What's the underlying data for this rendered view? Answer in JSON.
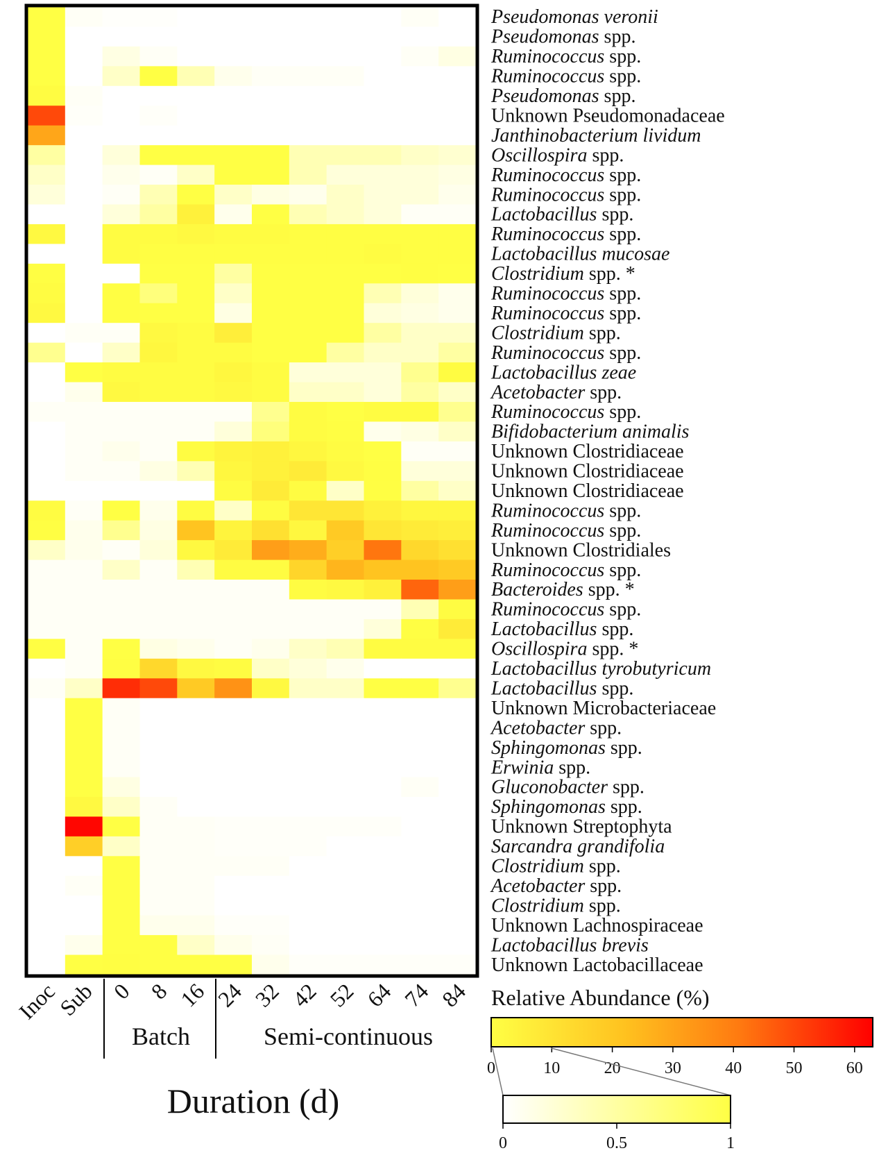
{
  "chart_data": {
    "type": "heatmap",
    "xlabel": "Duration (d)",
    "columns": [
      "Inoc",
      "Sub",
      "0",
      "8",
      "16",
      "24",
      "32",
      "42",
      "52",
      "64",
      "74",
      "84"
    ],
    "groups": [
      {
        "label": "Batch",
        "columns": [
          "0",
          "8",
          "16"
        ]
      },
      {
        "label": "Semi-continuous",
        "columns": [
          "24",
          "32",
          "42",
          "52",
          "64",
          "74",
          "84"
        ]
      }
    ],
    "rows": [
      {
        "genus": "Pseudomonas veronii",
        "rest": "",
        "italic": true
      },
      {
        "genus": "Pseudomonas",
        "rest": " spp.",
        "italic": true
      },
      {
        "genus": "Ruminococcus",
        "rest": " spp.",
        "italic": true
      },
      {
        "genus": "Ruminococcus",
        "rest": " spp.",
        "italic": true
      },
      {
        "genus": "Pseudomonas",
        "rest": " spp.",
        "italic": true
      },
      {
        "genus": "Unknown Pseudomonadaceae",
        "rest": "",
        "italic": false
      },
      {
        "genus": "Janthinobacterium lividum",
        "rest": "",
        "italic": true
      },
      {
        "genus": "Oscillospira",
        "rest": " spp.",
        "italic": true
      },
      {
        "genus": "Ruminococcus",
        "rest": " spp.",
        "italic": true
      },
      {
        "genus": "Ruminococcus",
        "rest": " spp.",
        "italic": true
      },
      {
        "genus": "Lactobacillus",
        "rest": " spp.",
        "italic": true
      },
      {
        "genus": "Ruminococcus",
        "rest": " spp.",
        "italic": true
      },
      {
        "genus": "Lactobacillus mucosae",
        "rest": "",
        "italic": true
      },
      {
        "genus": "Clostridium",
        "rest": " spp. *",
        "italic": true
      },
      {
        "genus": "Ruminococcus",
        "rest": " spp.",
        "italic": true
      },
      {
        "genus": "Ruminococcus",
        "rest": " spp.",
        "italic": true
      },
      {
        "genus": "Clostridium",
        "rest": " spp.",
        "italic": true
      },
      {
        "genus": "Ruminococcus",
        "rest": " spp.",
        "italic": true
      },
      {
        "genus": "Lactobacillus zeae",
        "rest": "",
        "italic": true
      },
      {
        "genus": "Acetobacter",
        "rest": " spp.",
        "italic": true
      },
      {
        "genus": "Ruminococcus",
        "rest": " spp.",
        "italic": true
      },
      {
        "genus": "Bifidobacterium animalis",
        "rest": "",
        "italic": true
      },
      {
        "genus": "Unknown Clostridiaceae",
        "rest": "",
        "italic": false
      },
      {
        "genus": "Unknown Clostridiaceae",
        "rest": "",
        "italic": false
      },
      {
        "genus": "Unknown Clostridiaceae",
        "rest": "",
        "italic": false
      },
      {
        "genus": "Ruminococcus",
        "rest": " spp.",
        "italic": true
      },
      {
        "genus": "Ruminococcus",
        "rest": " spp.",
        "italic": true
      },
      {
        "genus": "Unknown Clostridiales",
        "rest": "",
        "italic": false
      },
      {
        "genus": "Ruminococcus",
        "rest": " spp.",
        "italic": true
      },
      {
        "genus": "Bacteroides",
        "rest": " spp. *",
        "italic": true
      },
      {
        "genus": "Ruminococcus",
        "rest": " spp.",
        "italic": true
      },
      {
        "genus": "Lactobacillus",
        "rest": " spp.",
        "italic": true
      },
      {
        "genus": "Oscillospira",
        "rest": " spp. *",
        "italic": true
      },
      {
        "genus": "Lactobacillus tyrobutyricum",
        "rest": "",
        "italic": true
      },
      {
        "genus": "Lactobacillus",
        "rest": " spp.",
        "italic": true
      },
      {
        "genus": "Unknown Microbacteriaceae",
        "rest": "",
        "italic": false
      },
      {
        "genus": "Acetobacter",
        "rest": " spp.",
        "italic": true
      },
      {
        "genus": "Sphingomonas",
        "rest": " spp.",
        "italic": true
      },
      {
        "genus": "Erwinia",
        "rest": " spp.",
        "italic": true
      },
      {
        "genus": "Gluconobacter",
        "rest": " spp.",
        "italic": true
      },
      {
        "genus": "Sphingomonas",
        "rest": " spp.",
        "italic": true
      },
      {
        "genus": "Unknown Streptophyta",
        "rest": "",
        "italic": false
      },
      {
        "genus": "Sarcandra grandifolia",
        "rest": "",
        "italic": true
      },
      {
        "genus": "Clostridium",
        "rest": " spp.",
        "italic": true
      },
      {
        "genus": "Acetobacter",
        "rest": " spp.",
        "italic": true
      },
      {
        "genus": "Clostridium",
        "rest": " spp.",
        "italic": true
      },
      {
        "genus": "Unknown Lachnospiraceae",
        "rest": "",
        "italic": false
      },
      {
        "genus": "Lactobacillus brevis",
        "rest": "",
        "italic": true
      },
      {
        "genus": "Unknown Lactobacillaceae",
        "rest": "",
        "italic": false
      }
    ],
    "values": [
      [
        1.0,
        0.05,
        0.02,
        0.02,
        0,
        0,
        0,
        0,
        0,
        0,
        0.05,
        0
      ],
      [
        1.0,
        0,
        0,
        0,
        0,
        0,
        0,
        0,
        0,
        0,
        0,
        0
      ],
      [
        1.0,
        0,
        0.15,
        0.05,
        0,
        0,
        0,
        0,
        0,
        0,
        0.05,
        0.15
      ],
      [
        1.0,
        0,
        0.3,
        1.0,
        0.4,
        0.1,
        0.05,
        0.05,
        0.05,
        0,
        0,
        0
      ],
      [
        2,
        0.05,
        0,
        0,
        0,
        0,
        0,
        0,
        0,
        0,
        0,
        0
      ],
      [
        50,
        0.03,
        0,
        0.03,
        0,
        0,
        0,
        0,
        0,
        0,
        0,
        0
      ],
      [
        30,
        0,
        0,
        0,
        0,
        0,
        0,
        0,
        0,
        0,
        0,
        0
      ],
      [
        0.5,
        0,
        0.2,
        1.0,
        1.0,
        1.0,
        1.0,
        0.4,
        0.4,
        0.4,
        0.3,
        0.25
      ],
      [
        0.3,
        0,
        0.1,
        0.05,
        0.3,
        1.0,
        1.0,
        0.4,
        0.2,
        0.2,
        0.2,
        0.15
      ],
      [
        0.2,
        0,
        0.05,
        0.4,
        1.0,
        0.3,
        0.15,
        0.1,
        0.3,
        0.2,
        0.2,
        0.1
      ],
      [
        0,
        0,
        0.2,
        0.5,
        6,
        0.1,
        1.0,
        0.4,
        0.3,
        0.2,
        0.05,
        0.05
      ],
      [
        3,
        0,
        2,
        2,
        3,
        2,
        2,
        1.5,
        1.5,
        1.5,
        1.5,
        1.5
      ],
      [
        0,
        0,
        2,
        1.5,
        1.5,
        1.5,
        1.5,
        1.5,
        1.5,
        2,
        1.5,
        1.5
      ],
      [
        1.5,
        0,
        0,
        1.0,
        1.0,
        0.5,
        1.0,
        1.0,
        1.0,
        1.0,
        1.5,
        1.0
      ],
      [
        2,
        0,
        1.5,
        0.7,
        1.0,
        0.3,
        1.0,
        1.0,
        1.0,
        0.4,
        0.2,
        0.1
      ],
      [
        3,
        0,
        1.5,
        1.0,
        1.0,
        0.15,
        1.0,
        1.0,
        1.0,
        0.2,
        0.15,
        0.1
      ],
      [
        0,
        0.05,
        0.05,
        3,
        2,
        7,
        1.0,
        1.0,
        1.0,
        0.5,
        0.3,
        0.3
      ],
      [
        0.6,
        0,
        0.3,
        4,
        2,
        2,
        1.0,
        1.0,
        0.5,
        0.3,
        0.3,
        0.5
      ],
      [
        0,
        1.0,
        2,
        2,
        2,
        4,
        2,
        0.2,
        0.2,
        0.2,
        0.6,
        2
      ],
      [
        0,
        0.1,
        3,
        2,
        2,
        3,
        2,
        0.3,
        0.3,
        0.2,
        0.5,
        0.3
      ],
      [
        0.05,
        0.05,
        0.05,
        0.05,
        0.05,
        0.05,
        0.6,
        2,
        1.0,
        2,
        2,
        0.6
      ],
      [
        0,
        0.05,
        0.05,
        0.05,
        0.05,
        0.2,
        0.7,
        2,
        1.5,
        0.1,
        0.15,
        0.3
      ],
      [
        0,
        0.05,
        0.1,
        0.05,
        2,
        5,
        6,
        4,
        2,
        1.0,
        0.05,
        0.05
      ],
      [
        0,
        0.05,
        0.05,
        0.15,
        0.4,
        4,
        6,
        8,
        3,
        1.5,
        0.2,
        0.2
      ],
      [
        0,
        0,
        0,
        0,
        0,
        2,
        8,
        2,
        0.3,
        1.5,
        0.5,
        0.3
      ],
      [
        2,
        0.05,
        1.0,
        0.1,
        2,
        0.3,
        2,
        10,
        10,
        6,
        4,
        4
      ],
      [
        1.5,
        0.1,
        0.6,
        0.15,
        22,
        5,
        12,
        4,
        20,
        10,
        8,
        7
      ],
      [
        0.3,
        0.1,
        0.05,
        0.2,
        3,
        8,
        32,
        28,
        18,
        42,
        15,
        12
      ],
      [
        0.05,
        0.05,
        0.3,
        0.05,
        0.4,
        2,
        2,
        16,
        26,
        22,
        22,
        20
      ],
      [
        0.05,
        0.05,
        0.05,
        0.05,
        0.05,
        0.05,
        0.05,
        2,
        3,
        6,
        45,
        32
      ],
      [
        0.05,
        0.05,
        0.05,
        0.05,
        0.05,
        0.05,
        0.05,
        0.05,
        0.05,
        0.05,
        0.4,
        2
      ],
      [
        0.05,
        0.05,
        0.05,
        0.05,
        0.05,
        0.05,
        0.05,
        0.05,
        0.05,
        0.2,
        1.5,
        8
      ],
      [
        1.5,
        0.05,
        1.0,
        0.15,
        0.1,
        0.05,
        0.1,
        0.3,
        0.4,
        2,
        2,
        2
      ],
      [
        0,
        0.05,
        1.5,
        15,
        3,
        2,
        0.3,
        0.2,
        0.1,
        0,
        0,
        0
      ],
      [
        0.05,
        0.3,
        55,
        50,
        20,
        35,
        3,
        0.3,
        0.3,
        1.0,
        1.0,
        0.6
      ],
      [
        0,
        1.0,
        0.05,
        0,
        0,
        0,
        0,
        0,
        0,
        0,
        0,
        0
      ],
      [
        0,
        1.0,
        0.05,
        0,
        0,
        0,
        0,
        0,
        0,
        0,
        0,
        0
      ],
      [
        0,
        1.0,
        0.05,
        0,
        0,
        0,
        0,
        0,
        0,
        0,
        0,
        0
      ],
      [
        0,
        1.0,
        0.05,
        0,
        0,
        0,
        0,
        0,
        0,
        0,
        0,
        0
      ],
      [
        0,
        1.0,
        0.15,
        0,
        0,
        0,
        0,
        0,
        0,
        0,
        0.05,
        0
      ],
      [
        0,
        3,
        0.3,
        0.05,
        0,
        0,
        0,
        0,
        0,
        0,
        0,
        0
      ],
      [
        0,
        62,
        1.0,
        0.05,
        0.05,
        0.03,
        0.03,
        0.03,
        0.03,
        0.03,
        0,
        0
      ],
      [
        0,
        18,
        0.3,
        0.05,
        0.05,
        0.03,
        0.03,
        0.03,
        0,
        0,
        0,
        0
      ],
      [
        0,
        0,
        1.0,
        0.05,
        0.05,
        0.05,
        0.05,
        0,
        0,
        0,
        0,
        0
      ],
      [
        0,
        0.05,
        1.0,
        0.05,
        0.05,
        0,
        0,
        0,
        0,
        0,
        0,
        0
      ],
      [
        0,
        0,
        1.0,
        0.05,
        0.05,
        0,
        0,
        0,
        0,
        0,
        0,
        0
      ],
      [
        0,
        0,
        1.0,
        0.1,
        0.1,
        0.03,
        0.03,
        0,
        0,
        0,
        0,
        0
      ],
      [
        0,
        0.1,
        1.0,
        1.0,
        0.3,
        0.1,
        0.05,
        0,
        0,
        0,
        0,
        0
      ],
      [
        0,
        1.0,
        1.5,
        1.0,
        1.0,
        1.0,
        0.1,
        0.03,
        0.03,
        0.03,
        0.03,
        0.03
      ]
    ],
    "colorbar": {
      "title": "Relative Abundance (%)",
      "range": [
        0,
        63
      ],
      "ticks": [
        0,
        10,
        20,
        30,
        40,
        50,
        60
      ],
      "zoom_range": [
        0,
        1
      ],
      "zoom_ticks": [
        "0",
        "0.5",
        "1"
      ]
    },
    "colors": {
      "low": "#ffffff",
      "mid": "#ffff44",
      "high": "#ff0000"
    }
  }
}
